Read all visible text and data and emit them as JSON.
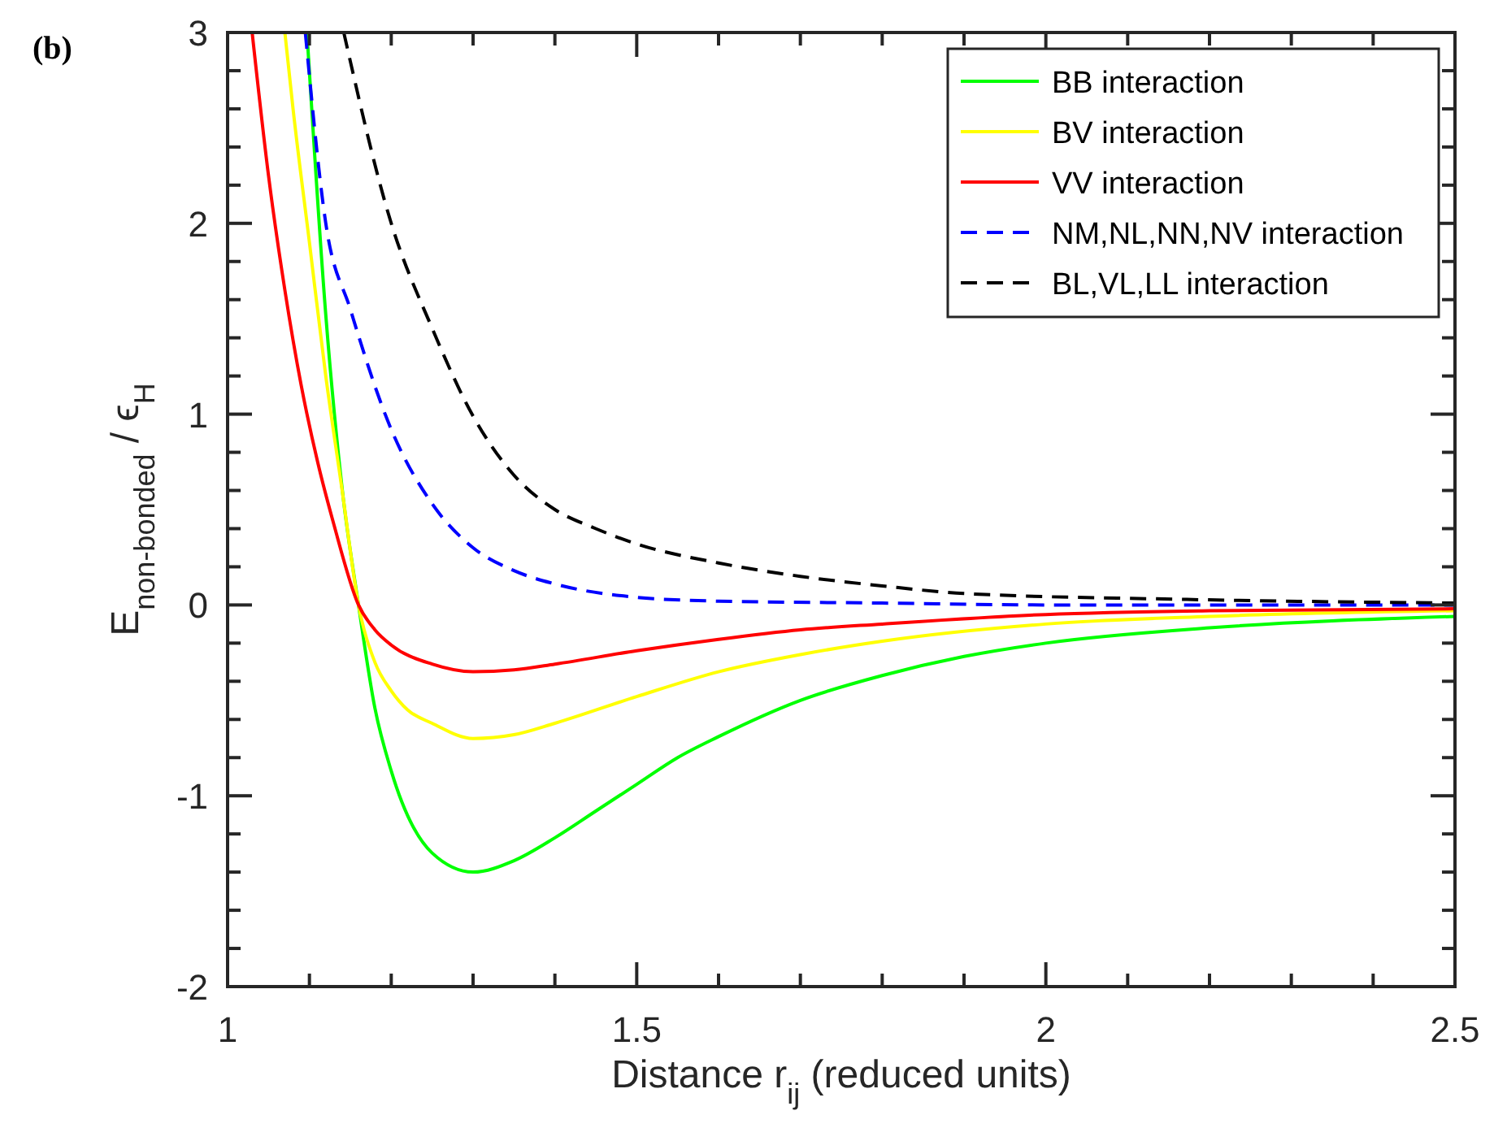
{
  "chart_data": {
    "type": "line",
    "title": "(b)",
    "xlabel": "Distance r$_{ij}$ (reduced units)",
    "ylabel": "E$_{non-bonded}$ / ϵ$_{H}$",
    "xlim": [
      1,
      2.5
    ],
    "ylim": [
      -2,
      3
    ],
    "xticks": [
      1,
      {
        "value": 1.1,
        "label": null
      },
      {
        "value": 1.2,
        "label": null
      },
      {
        "value": 1.3,
        "label": null
      },
      {
        "value": 1.4,
        "label": null
      },
      1.5,
      {
        "value": 1.6,
        "label": null
      },
      {
        "value": 1.7,
        "label": null
      },
      {
        "value": 1.8,
        "label": null
      },
      {
        "value": 1.9,
        "label": null
      },
      2,
      {
        "value": 2.1,
        "label": null
      },
      {
        "value": 2.2,
        "label": null
      },
      {
        "value": 2.3,
        "label": null
      },
      {
        "value": 2.4,
        "label": null
      },
      2.5
    ],
    "yticks": [
      -2,
      {
        "value": -1.8,
        "label": null
      },
      {
        "value": -1.6,
        "label": null
      },
      {
        "value": -1.4,
        "label": null
      },
      {
        "value": -1.2,
        "label": null
      },
      -1,
      {
        "value": -0.8,
        "label": null
      },
      {
        "value": -0.6,
        "label": null
      },
      {
        "value": -0.4,
        "label": null
      },
      {
        "value": -0.2,
        "label": null
      },
      0,
      {
        "value": 0.2,
        "label": null
      },
      {
        "value": 0.4,
        "label": null
      },
      {
        "value": 0.6,
        "label": null
      },
      {
        "value": 0.8,
        "label": null
      },
      1,
      {
        "value": 1.2,
        "label": null
      },
      {
        "value": 1.4,
        "label": null
      },
      {
        "value": 1.6,
        "label": null
      },
      {
        "value": 1.8,
        "label": null
      },
      2,
      {
        "value": 2.2,
        "label": null
      },
      {
        "value": 2.4,
        "label": null
      },
      {
        "value": 2.6,
        "label": null
      },
      {
        "value": 2.8,
        "label": null
      },
      3
    ],
    "grid": false,
    "legend": "top right",
    "marker": "none",
    "series": [
      {
        "name": "BB interaction",
        "color": "#00ff00",
        "line_style": "solid",
        "x": [
          1.097,
          1.12,
          1.14,
          1.16,
          1.18,
          1.2,
          1.25,
          1.3,
          1.35,
          1.4,
          1.45,
          1.5,
          1.55,
          1.6,
          1.7,
          1.8,
          1.9,
          2,
          2.2,
          2.5
        ],
        "values": [
          3,
          1.52,
          0.61,
          0,
          -0.54,
          -0.87,
          -1.3,
          -1.4,
          -1.34,
          -1.22,
          -1.08,
          -0.94,
          -0.8,
          -0.69,
          -0.5,
          -0.37,
          -0.27,
          -0.2,
          -0.12,
          -0.06
        ]
      },
      {
        "name": "BV interaction",
        "color": "#ffff00",
        "line_style": "solid",
        "x": [
          1.07,
          1.08,
          1.1,
          1.12,
          1.14,
          1.16,
          1.18,
          1.2,
          1.22,
          1.25,
          1.3,
          1.35,
          1.4,
          1.5,
          1.6,
          1.7,
          1.8,
          2,
          2.2,
          2.5
        ],
        "values": [
          3,
          2.6,
          1.9,
          1.2,
          0.6,
          0,
          -0.3,
          -0.45,
          -0.55,
          -0.62,
          -0.7,
          -0.68,
          -0.62,
          -0.48,
          -0.35,
          -0.26,
          -0.19,
          -0.1,
          -0.06,
          -0.03
        ]
      },
      {
        "name": "VV interaction",
        "color": "#ff0000",
        "line_style": "solid",
        "x": [
          1.03,
          1.05,
          1.07,
          1.09,
          1.11,
          1.13,
          1.16,
          1.18,
          1.2,
          1.25,
          1.3,
          1.35,
          1.4,
          1.5,
          1.6,
          1.7,
          1.8,
          2,
          2.2,
          2.5
        ],
        "values": [
          3,
          2.25,
          1.65,
          1.15,
          0.75,
          0.42,
          0,
          -0.13,
          -0.21,
          -0.31,
          -0.35,
          -0.34,
          -0.31,
          -0.24,
          -0.18,
          -0.13,
          -0.1,
          -0.05,
          -0.03,
          -0.02
        ]
      },
      {
        "name": "NM,NL,NN,NV interaction",
        "color": "#0000ff",
        "line_style": "dashed",
        "x": [
          1.095,
          1.12,
          1.15,
          1.2,
          1.25,
          1.3,
          1.35,
          1.4,
          1.5,
          1.6,
          1.8,
          2,
          2.5
        ],
        "values": [
          3,
          2,
          1.55,
          0.92,
          0.53,
          0.3,
          0.18,
          0.11,
          0.04,
          0.02,
          0.01,
          0,
          0
        ]
      },
      {
        "name": "BL,VL,LL interaction",
        "color": "#000000",
        "line_style": "dashed",
        "x": [
          1.142,
          1.2,
          1.25,
          1.3,
          1.35,
          1.4,
          1.45,
          1.5,
          1.6,
          1.7,
          1.8,
          1.9,
          2.16,
          2.5
        ],
        "values": [
          3,
          2,
          1.45,
          0.99,
          0.68,
          0.5,
          0.4,
          0.32,
          0.22,
          0.15,
          0.1,
          0.06,
          0.03,
          0.01
        ]
      }
    ]
  }
}
